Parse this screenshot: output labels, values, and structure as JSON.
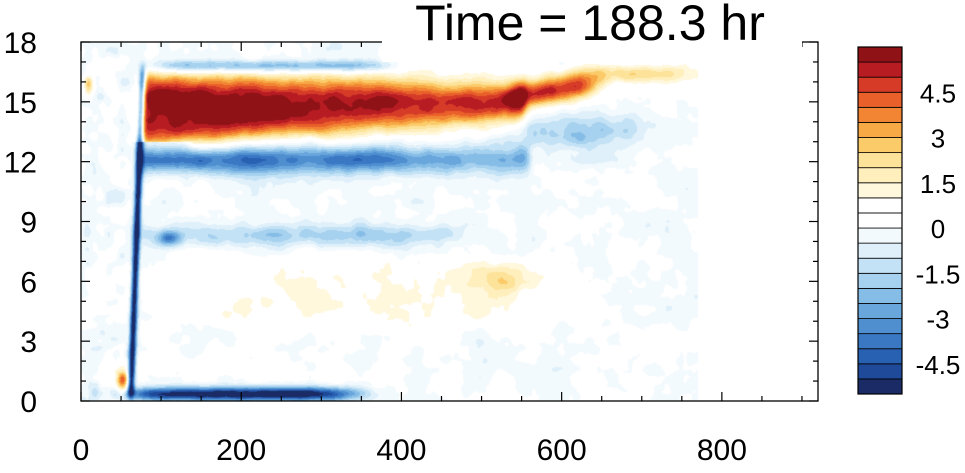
{
  "chart_data": {
    "type": "heatmap",
    "title": "Time = 188.3 hr",
    "xlabel": "",
    "ylabel": "",
    "xlim": [
      0,
      920
    ],
    "ylim": [
      0,
      18
    ],
    "x_ticks": [
      0,
      200,
      400,
      600,
      800
    ],
    "y_ticks": [
      0,
      3,
      6,
      9,
      12,
      15,
      18
    ],
    "colorbar": {
      "levels": [
        -5.5,
        -5,
        -4.5,
        -4,
        -3.5,
        -3,
        -2.5,
        -2,
        -1.5,
        -1,
        -0.5,
        0,
        0.5,
        1,
        1.5,
        2,
        2.5,
        3,
        3.5,
        4,
        4.5,
        5,
        5.5
      ],
      "colors": [
        "#1a2b66",
        "#1f4a9a",
        "#2860b2",
        "#3a78c4",
        "#4f8fd0",
        "#68a6dc",
        "#86bde6",
        "#a6d1ef",
        "#c4e2f5",
        "#dff0fa",
        "#f3fafd",
        "#ffffff",
        "#ffffff",
        "#fff8dd",
        "#ffefbd",
        "#fde29a",
        "#fbcb6a",
        "#f7a945",
        "#f28533",
        "#e9602b",
        "#d63b28",
        "#b81c23",
        "#8f1216"
      ],
      "tick_labels": [
        "4.5",
        "3",
        "1.5",
        "0",
        "-1.5",
        "-3",
        "-4.5"
      ],
      "tick_values": [
        4.5,
        3,
        1.5,
        0,
        -1.5,
        -3,
        -4.5
      ]
    },
    "features": [
      {
        "region": "warm band",
        "x_range": [
          60,
          560
        ],
        "y_range": [
          13,
          16.5
        ],
        "value": 6
      },
      {
        "region": "upper warm extension",
        "x_range": [
          560,
          760
        ],
        "y_range": [
          15,
          17
        ],
        "value": 3
      },
      {
        "region": "cool band",
        "x_range": [
          60,
          560
        ],
        "y_range": [
          11,
          13
        ],
        "value": -3.5
      },
      {
        "region": "cool band near 8 km",
        "x_range": [
          80,
          440
        ],
        "y_range": [
          7.5,
          9
        ],
        "value": -1.5
      },
      {
        "region": "weak warm area",
        "x_range": [
          80,
          600
        ],
        "y_range": [
          3,
          7
        ],
        "value": 1
      },
      {
        "region": "cold surface layer",
        "x_range": [
          70,
          330
        ],
        "y_range": [
          0,
          0.8
        ],
        "value": -5.5
      },
      {
        "region": "cold vertical line",
        "x_range": [
          55,
          75
        ],
        "y_range": [
          0.5,
          16.5
        ],
        "value": -5
      }
    ]
  }
}
